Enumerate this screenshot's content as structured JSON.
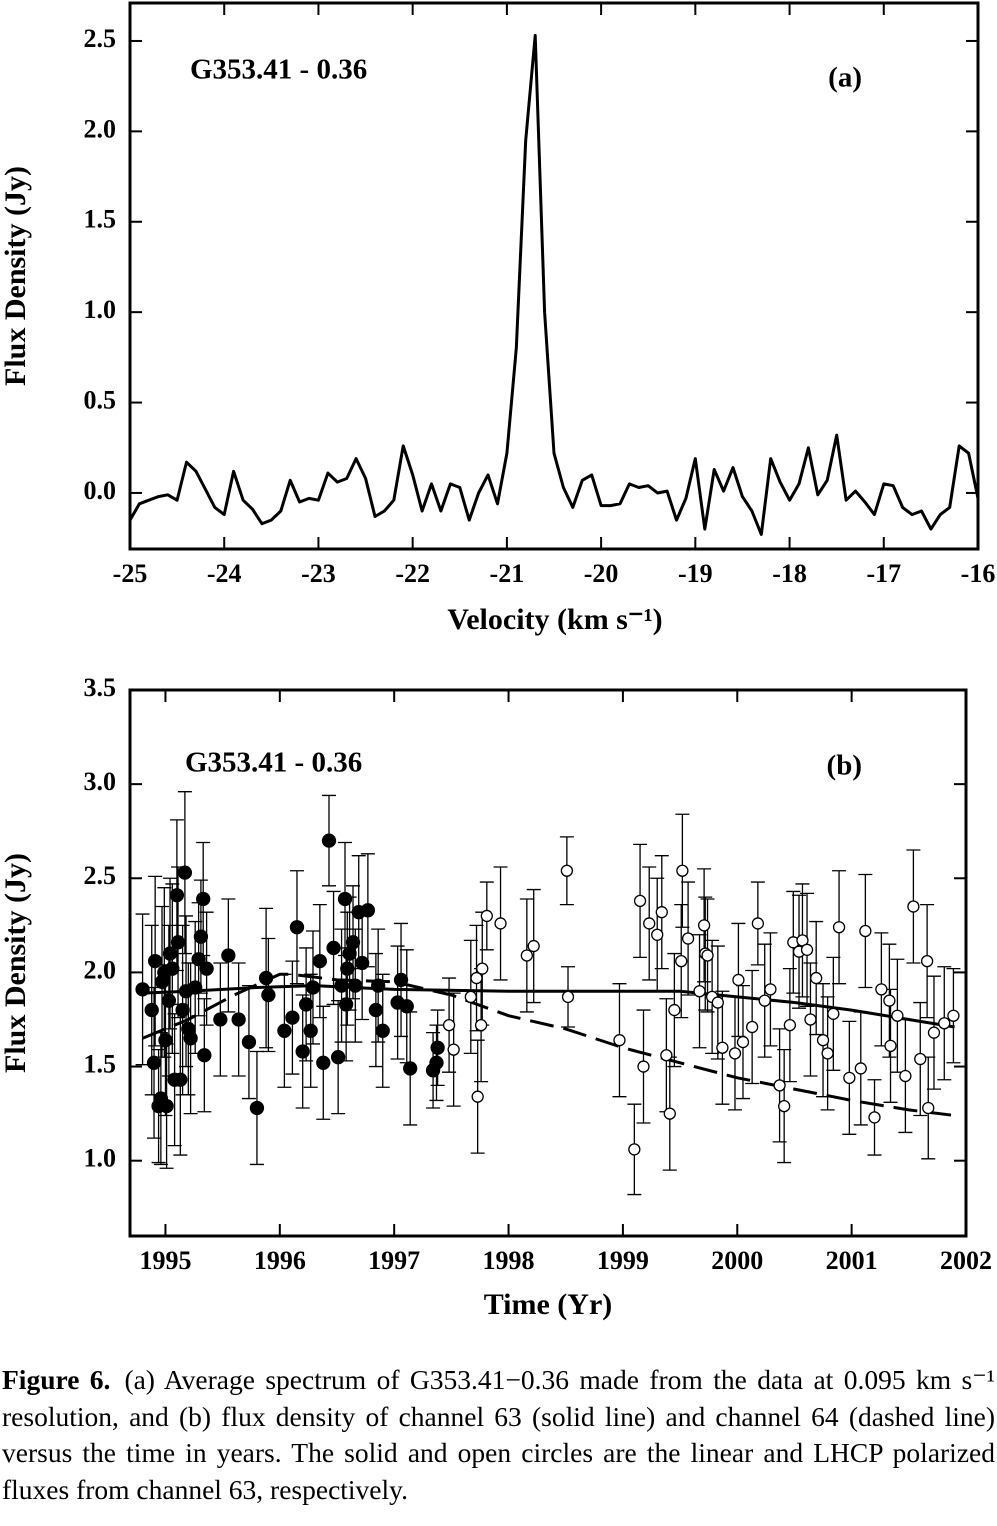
{
  "chart_data": [
    {
      "type": "line",
      "annotations": [
        "G353.41 - 0.36",
        "(a)"
      ],
      "xlabel": "Velocity (km s⁻¹)",
      "ylabel": "Flux Density (Jy)",
      "xlim": [
        -25,
        -16
      ],
      "ylim": [
        -0.31,
        2.71
      ],
      "xticks": [
        -25,
        -24,
        -23,
        -22,
        -21,
        -20,
        -19,
        -18,
        -17,
        -16
      ],
      "yticks": [
        {
          "value": 0,
          "label": "0.0"
        },
        0.5,
        {
          "value": 1,
          "label": "1.0"
        },
        1.5,
        {
          "value": 2,
          "label": "2.0"
        },
        2.5
      ],
      "color": "#000000",
      "x": [
        -25.0,
        -24.9,
        -24.8,
        -24.7,
        -24.6,
        -24.5,
        -24.4,
        -24.3,
        -24.2,
        -24.1,
        -24.0,
        -23.9,
        -23.8,
        -23.7,
        -23.6,
        -23.5,
        -23.4,
        -23.3,
        -23.2,
        -23.1,
        -23.0,
        -22.9,
        -22.8,
        -22.7,
        -22.6,
        -22.5,
        -22.4,
        -22.3,
        -22.2,
        -22.1,
        -22.0,
        -21.9,
        -21.8,
        -21.7,
        -21.6,
        -21.5,
        -21.4,
        -21.3,
        -21.2,
        -21.1,
        -21.0,
        -20.9,
        -20.8,
        -20.7,
        -20.6,
        -20.5,
        -20.4,
        -20.3,
        -20.2,
        -20.1,
        -20.0,
        -19.9,
        -19.8,
        -19.7,
        -19.6,
        -19.5,
        -19.4,
        -19.3,
        -19.2,
        -19.1,
        -19.0,
        -18.9,
        -18.8,
        -18.7,
        -18.6,
        -18.5,
        -18.4,
        -18.3,
        -18.2,
        -18.1,
        -18.0,
        -17.9,
        -17.8,
        -17.7,
        -17.6,
        -17.5,
        -17.4,
        -17.3,
        -17.2,
        -17.1,
        -17.0,
        -16.9,
        -16.8,
        -16.7,
        -16.6,
        -16.5,
        -16.4,
        -16.3,
        -16.2,
        -16.1,
        -16.0
      ],
      "values": [
        -0.15,
        -0.06,
        -0.04,
        -0.02,
        -0.01,
        -0.04,
        0.17,
        0.12,
        0.02,
        -0.08,
        -0.12,
        0.12,
        -0.04,
        -0.09,
        -0.17,
        -0.15,
        -0.1,
        0.07,
        -0.05,
        -0.03,
        -0.04,
        0.11,
        0.06,
        0.08,
        0.19,
        0.08,
        -0.13,
        -0.1,
        -0.04,
        0.26,
        0.1,
        -0.1,
        0.05,
        -0.1,
        0.05,
        0.03,
        -0.15,
        0.0,
        0.1,
        -0.06,
        0.22,
        0.8,
        1.95,
        2.53,
        1.0,
        0.22,
        0.03,
        -0.08,
        0.07,
        0.1,
        -0.07,
        -0.07,
        -0.06,
        0.05,
        0.03,
        0.04,
        0.0,
        0.01,
        -0.15,
        -0.03,
        0.19,
        -0.2,
        0.13,
        0.01,
        0.14,
        -0.02,
        -0.1,
        -0.23,
        0.19,
        0.06,
        -0.04,
        0.05,
        0.25,
        -0.01,
        0.07,
        0.32,
        -0.04,
        0.01,
        -0.05,
        -0.12,
        0.05,
        0.04,
        -0.08,
        -0.12,
        -0.1,
        -0.2,
        -0.12,
        -0.08,
        0.26,
        0.22,
        -0.03
      ]
    },
    {
      "type": "scatter",
      "annotations": [
        "G353.41 - 0.36",
        "(b)"
      ],
      "xlabel": "Time (Yr)",
      "ylabel": "Flux Density (Jy)",
      "xlim": [
        1994.69,
        2002.0
      ],
      "ylim": [
        0.6,
        3.5
      ],
      "xticks": [
        1995,
        1996,
        1997,
        1998,
        1999,
        2000,
        2001,
        2002
      ],
      "yticks": [
        {
          "value": 1,
          "label": "1.0"
        },
        1.5,
        {
          "value": 2,
          "label": "2.0"
        },
        2.5,
        {
          "value": 3,
          "label": "3.0"
        },
        3.5
      ],
      "series": [
        {
          "style": "filled",
          "color": "#000000",
          "x": [
            1994.8,
            1994.88,
            1994.91,
            1994.9,
            1994.94,
            1994.96,
            1994.97,
            1994.99,
            1995.0,
            1995.01,
            1995.03,
            1995.04,
            1995.06,
            1995.08,
            1995.1,
            1995.11,
            1995.13,
            1995.15,
            1995.17,
            1995.18,
            1995.2,
            1995.22,
            1995.26,
            1995.29,
            1995.31,
            1995.33,
            1995.34,
            1995.36,
            1995.48,
            1995.55,
            1995.64,
            1995.73,
            1995.8,
            1995.88,
            1995.9,
            1996.04,
            1996.11,
            1996.15,
            1996.2,
            1996.23,
            1996.27,
            1996.29,
            1996.35,
            1996.38,
            1996.43,
            1996.47,
            1996.51,
            1996.54,
            1996.57,
            1996.58,
            1996.59,
            1996.61,
            1996.64,
            1996.66,
            1996.69,
            1996.72,
            1996.77,
            1996.84,
            1996.86,
            1996.9,
            1997.03,
            1997.06,
            1997.11,
            1997.14,
            1997.34,
            1997.37,
            1997.38
          ],
          "values": [
            1.91,
            1.8,
            2.06,
            1.52,
            1.29,
            1.33,
            1.95,
            2.0,
            1.64,
            1.29,
            1.85,
            2.1,
            2.02,
            1.43,
            2.41,
            2.16,
            1.43,
            1.8,
            2.53,
            1.9,
            1.7,
            1.65,
            1.92,
            2.07,
            2.19,
            2.39,
            1.56,
            2.02,
            1.75,
            2.09,
            1.75,
            1.63,
            1.28,
            1.97,
            1.88,
            1.69,
            1.76,
            2.24,
            1.58,
            1.83,
            1.69,
            1.92,
            2.06,
            1.52,
            2.7,
            2.13,
            1.55,
            1.93,
            2.39,
            1.83,
            2.02,
            2.1,
            2.16,
            1.93,
            2.32,
            2.05,
            2.33,
            1.8,
            1.93,
            1.69,
            1.84,
            1.96,
            1.82,
            1.49,
            1.48,
            1.52,
            1.6
          ],
          "errors": [
            0.4,
            0.45,
            0.45,
            0.4,
            0.3,
            0.35,
            0.4,
            0.45,
            0.4,
            0.33,
            0.4,
            0.4,
            0.45,
            0.35,
            0.4,
            0.4,
            0.4,
            0.45,
            0.43,
            0.4,
            0.35,
            0.4,
            0.35,
            0.3,
            0.3,
            0.3,
            0.3,
            0.3,
            0.3,
            0.3,
            0.3,
            0.3,
            0.3,
            0.37,
            0.3,
            0.3,
            0.3,
            0.3,
            0.3,
            0.3,
            0.3,
            0.3,
            0.3,
            0.3,
            0.24,
            0.3,
            0.3,
            0.3,
            0.3,
            0.3,
            0.3,
            0.3,
            0.3,
            0.3,
            0.3,
            0.3,
            0.3,
            0.3,
            0.3,
            0.3,
            0.3,
            0.3,
            0.3,
            0.3,
            0.2,
            0.2,
            0.2
          ]
        },
        {
          "style": "open",
          "color": "#000000",
          "x": [
            1997.48,
            1997.52,
            1997.67,
            1997.72,
            1997.73,
            1997.76,
            1997.77,
            1997.81,
            1997.93,
            1998.16,
            1998.22,
            1998.51,
            1998.52,
            1998.97,
            1999.1,
            1999.15,
            1999.18,
            1999.23,
            1999.3,
            1999.34,
            1999.38,
            1999.41,
            1999.45,
            1999.51,
            1999.52,
            1999.57,
            1999.67,
            1999.71,
            1999.72,
            1999.74,
            1999.78,
            1999.83,
            1999.87,
            1999.98,
            2000.01,
            2000.05,
            2000.13,
            2000.18,
            2000.24,
            2000.29,
            2000.37,
            2000.41,
            2000.46,
            2000.49,
            2000.54,
            2000.57,
            2000.61,
            2000.64,
            2000.69,
            2000.75,
            2000.79,
            2000.84,
            2000.89,
            2000.98,
            2001.08,
            2001.12,
            2001.2,
            2001.26,
            2001.33,
            2001.34,
            2001.4,
            2001.47,
            2001.54,
            2001.6,
            2001.66,
            2001.67,
            2001.72,
            2001.81,
            2001.89
          ],
          "values": [
            1.72,
            1.59,
            1.87,
            1.97,
            1.34,
            1.72,
            2.02,
            2.3,
            2.26,
            2.09,
            2.14,
            2.54,
            1.87,
            1.64,
            1.06,
            2.38,
            1.5,
            2.26,
            2.2,
            2.32,
            1.56,
            1.25,
            1.8,
            2.06,
            2.54,
            2.18,
            1.9,
            2.25,
            2.1,
            2.09,
            1.87,
            1.84,
            1.6,
            1.57,
            1.96,
            1.63,
            1.71,
            2.26,
            1.85,
            1.91,
            1.4,
            1.29,
            1.72,
            2.16,
            2.11,
            2.17,
            2.12,
            1.75,
            1.97,
            1.64,
            1.57,
            1.78,
            2.24,
            1.44,
            1.49,
            2.22,
            1.23,
            1.91,
            1.85,
            1.61,
            1.77,
            1.45,
            2.35,
            1.54,
            2.06,
            1.28,
            1.68,
            1.73,
            1.77
          ],
          "errors": [
            0.25,
            0.3,
            0.3,
            0.28,
            0.3,
            0.3,
            0.3,
            0.18,
            0.3,
            0.3,
            0.3,
            0.18,
            0.16,
            0.3,
            0.24,
            0.3,
            0.3,
            0.3,
            0.3,
            0.3,
            0.3,
            0.3,
            0.3,
            0.3,
            0.3,
            0.3,
            0.3,
            0.3,
            0.3,
            0.3,
            0.3,
            0.3,
            0.3,
            0.3,
            0.3,
            0.3,
            0.3,
            0.22,
            0.3,
            0.3,
            0.3,
            0.3,
            0.3,
            0.27,
            0.3,
            0.3,
            0.3,
            0.3,
            0.3,
            0.3,
            0.3,
            0.3,
            0.3,
            0.3,
            0.3,
            0.3,
            0.2,
            0.3,
            0.3,
            0.3,
            0.3,
            0.3,
            0.3,
            0.3,
            0.3,
            0.27,
            0.3,
            0.3,
            0.25
          ]
        }
      ],
      "lines": [
        {
          "style": "solid",
          "color": "#000000",
          "x": [
            1994.8,
            1995.2,
            1995.8,
            1996.3,
            1997.0,
            1998.0,
            1999.0,
            1999.5,
            2000.0,
            2000.5,
            2001.0,
            2001.5,
            2001.9
          ],
          "values": [
            1.89,
            1.9,
            1.92,
            1.93,
            1.91,
            1.9,
            1.9,
            1.9,
            1.87,
            1.84,
            1.8,
            1.75,
            1.71
          ]
        },
        {
          "style": "dashed",
          "color": "#000000",
          "x": [
            1994.8,
            1995.2,
            1995.6,
            1996.0,
            1996.1,
            1996.5,
            1997.0,
            1997.5,
            1998.0,
            1998.5,
            1999.0,
            1999.5,
            2000.0,
            2000.5,
            2001.0,
            2001.5,
            2001.9
          ],
          "values": [
            1.65,
            1.75,
            1.88,
            1.99,
            1.99,
            1.96,
            1.95,
            1.88,
            1.77,
            1.7,
            1.6,
            1.52,
            1.44,
            1.38,
            1.32,
            1.27,
            1.24
          ]
        }
      ]
    }
  ],
  "caption": {
    "label": "Figure 6.",
    "text": "(a) Average spectrum of G353.41−0.36 made from the data at 0.095 km s⁻¹ resolution, and (b) flux density of channel 63 (solid line) and channel 64 (dashed line) versus the time in years. The solid and open circles are the linear and LHCP polarized fluxes from channel 63, respectively."
  }
}
